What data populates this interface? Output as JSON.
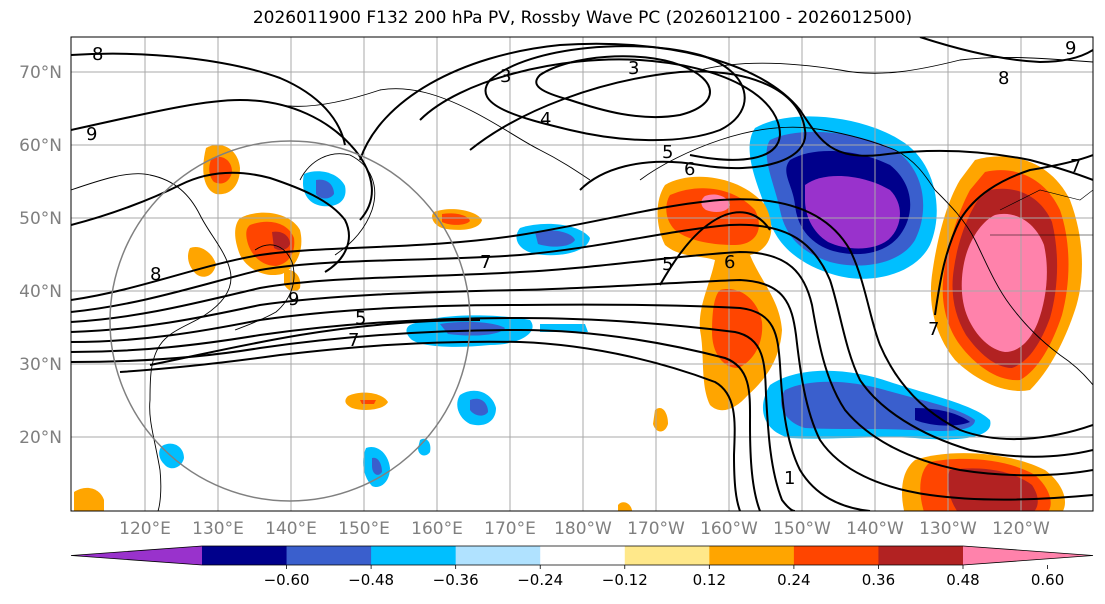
{
  "title": "2026011900 F132 200 hPa PV, Rossby Wave PC (2026012100 - 2026012500)",
  "lat_labels": [
    "70°N",
    "60°N",
    "50°N",
    "40°N",
    "30°N",
    "20°N"
  ],
  "lon_labels": [
    "120°E",
    "130°E",
    "140°E",
    "150°E",
    "160°E",
    "170°E",
    "180°W",
    "170°W",
    "160°W",
    "150°W",
    "140°W",
    "130°W",
    "120°W"
  ],
  "colorbar": {
    "colors": [
      "#9932cc",
      "#00008b",
      "#3a5fcd",
      "#00bfff",
      "#b0e2ff",
      "#ffffff",
      "#ffe88a",
      "#ffa500",
      "#ff4500",
      "#b22222",
      "#ff82ab"
    ],
    "ticks": [
      "−0.60",
      "−0.48",
      "−0.36",
      "−0.24",
      "−0.12",
      "0.12",
      "0.24",
      "0.36",
      "0.48",
      "0.60"
    ]
  },
  "contour_labels": [
    "8",
    "9",
    "3",
    "3",
    "4",
    "5",
    "6",
    "7",
    "5",
    "6",
    "8",
    "9",
    "5",
    "7",
    "1",
    "7",
    "9",
    "8",
    "7"
  ]
}
